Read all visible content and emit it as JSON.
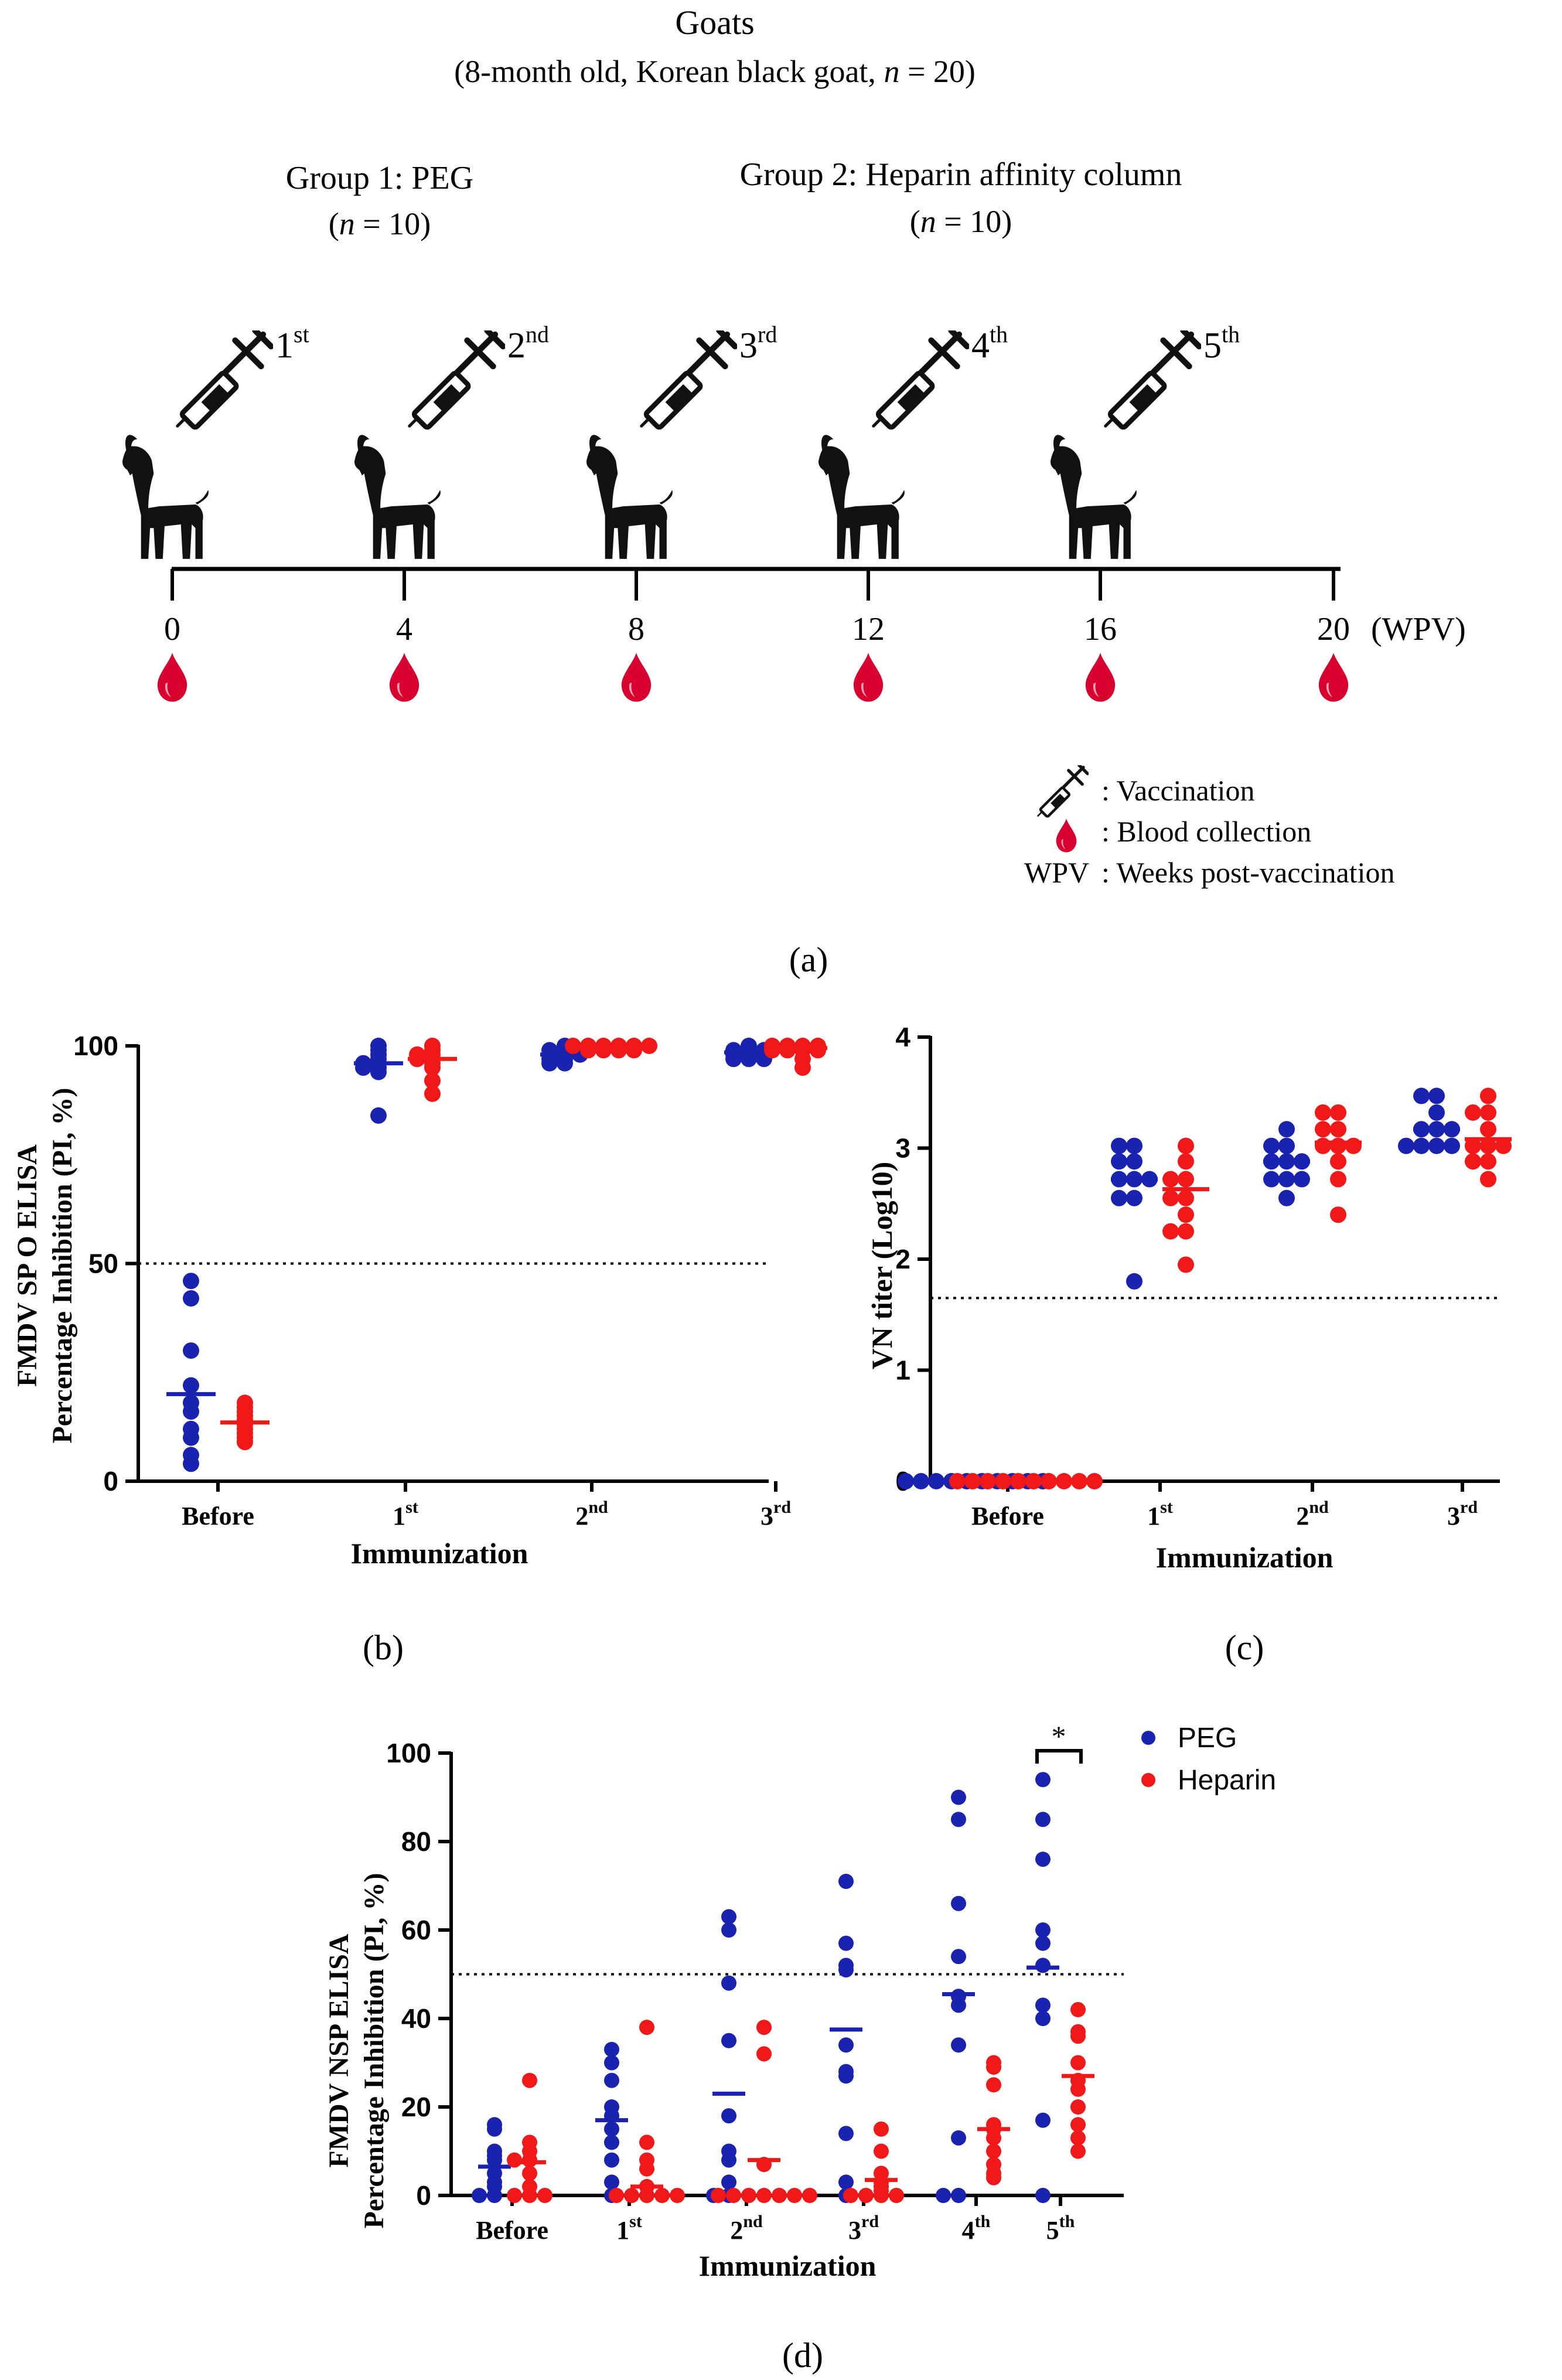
{
  "panel_a": {
    "title": "Goats",
    "subtitle_pre": "(8-month old, Korean black goat, ",
    "subtitle_n": "n",
    "subtitle_post": " = 20)",
    "group1_title": "Group 1:  PEG",
    "group1_n_pre": "(",
    "group1_n": "n",
    "group1_n_post": " = 10)",
    "group2_title": "Group 2: Heparin affinity column",
    "group2_n_pre": "(",
    "group2_n": "n",
    "group2_n_post": " = 10)",
    "doses": [
      {
        "num": "1",
        "sup": "st"
      },
      {
        "num": "2",
        "sup": "nd"
      },
      {
        "num": "3",
        "sup": "rd"
      },
      {
        "num": "4",
        "sup": "th"
      },
      {
        "num": "5",
        "sup": "th"
      }
    ],
    "timeline_ticks": [
      "0",
      "4",
      "8",
      "12",
      "16",
      "20"
    ],
    "timeline_unit": "(WPV)",
    "legend": {
      "vaccination": ": Vaccination",
      "blood": ": Blood collection",
      "wpv_key": "WPV",
      "wpv": ": Weeks post-vaccination"
    },
    "label": "(a)",
    "colors": {
      "goat": "#111111",
      "drop": "#d8002e",
      "line": "#000000"
    }
  },
  "panel_b": {
    "label": "(b)",
    "chart_data": {
      "type": "scatter",
      "ylabel_line1": "FMDV SP O ELISA",
      "ylabel_line2": "Percentage Inhibition (PI, %)",
      "xlabel": "Immunization",
      "ylim": [
        0,
        100
      ],
      "yticks": [
        "0",
        "50",
        "100"
      ],
      "threshold": 50,
      "categories": [
        {
          "num": "Before",
          "sup": ""
        },
        {
          "num": "1",
          "sup": "st"
        },
        {
          "num": "2",
          "sup": "nd"
        },
        {
          "num": "3",
          "sup": "rd"
        }
      ],
      "series": [
        {
          "color": "#1a22b0",
          "means": [
            20,
            96,
            98,
            98.5
          ],
          "points": [
            [
              46,
              42,
              30,
              22,
              18,
              16,
              12,
              10,
              6,
              4
            ],
            [
              100,
              99,
              98,
              97,
              96,
              96,
              95,
              95,
              94,
              84
            ],
            [
              100,
              99,
              99,
              98,
              98,
              98,
              97,
              97,
              96,
              96
            ],
            [
              100,
              99,
              99,
              99,
              98,
              98,
              98,
              97,
              97,
              97
            ]
          ]
        },
        {
          "color": "#f01818",
          "means": [
            13.5,
            97,
            100,
            99.5
          ],
          "points": [
            [
              18,
              17,
              16,
              15,
              14,
              13,
              12,
              11,
              10,
              9
            ],
            [
              100,
              99,
              98,
              98,
              97,
              97,
              96,
              95,
              92,
              89
            ],
            [
              100,
              100,
              100,
              100,
              100,
              100,
              99,
              99,
              99,
              99
            ],
            [
              100,
              100,
              100,
              100,
              99,
              99,
              99,
              99,
              97,
              95
            ]
          ]
        }
      ]
    }
  },
  "panel_c": {
    "label": "(c)",
    "chart_data": {
      "type": "scatter",
      "ylabel": "VN titer (Log10)",
      "xlabel": "Immunization",
      "ylim": [
        0,
        4
      ],
      "yticks": [
        "0",
        "1",
        "2",
        "3",
        "4"
      ],
      "threshold": 1.65,
      "categories": [
        {
          "num": "Before",
          "sup": ""
        },
        {
          "num": "1",
          "sup": "st"
        },
        {
          "num": "2",
          "sup": "nd"
        },
        {
          "num": "3",
          "sup": "rd"
        }
      ],
      "series": [
        {
          "color": "#1a22b0",
          "means": [
            0,
            2.72,
            2.88,
            3.17
          ],
          "points": [
            [
              0,
              0,
              0,
              0,
              0,
              0,
              0,
              0,
              0,
              0
            ],
            [
              3.02,
              3.02,
              2.88,
              2.88,
              2.72,
              2.72,
              2.72,
              2.55,
              2.55,
              1.8
            ],
            [
              3.17,
              3.02,
              3.02,
              2.88,
              2.88,
              2.88,
              2.72,
              2.72,
              2.72,
              2.55
            ],
            [
              3.47,
              3.47,
              3.32,
              3.17,
              3.17,
              3.17,
              3.02,
              3.02,
              3.02,
              3.02
            ]
          ]
        },
        {
          "color": "#f01818",
          "means": [
            0,
            2.63,
            3.05,
            3.08
          ],
          "points": [
            [
              0,
              0,
              0,
              0,
              0,
              0,
              0,
              0,
              0,
              0
            ],
            [
              3.02,
              2.88,
              2.72,
              2.72,
              2.55,
              2.55,
              2.4,
              2.25,
              2.25,
              1.95
            ],
            [
              3.32,
              3.32,
              3.17,
              3.17,
              3.02,
              3.02,
              3.02,
              2.88,
              2.72,
              2.4
            ],
            [
              3.47,
              3.32,
              3.32,
              3.17,
              3.02,
              3.02,
              3.02,
              2.88,
              2.88,
              2.72
            ]
          ]
        }
      ]
    }
  },
  "panel_d": {
    "label": "(d)",
    "chart_data": {
      "type": "scatter",
      "ylabel_line1": "FMDV NSP ELISA",
      "ylabel_line2": "Percentage Inhibition (PI, %)",
      "xlabel": "Immunization",
      "ylim": [
        0,
        100
      ],
      "yticks": [
        "0",
        "20",
        "40",
        "60",
        "80",
        "100"
      ],
      "threshold": 50,
      "significance": "*",
      "legend_placement": "top-right",
      "categories": [
        {
          "num": "Before",
          "sup": ""
        },
        {
          "num": "1",
          "sup": "st"
        },
        {
          "num": "2",
          "sup": "nd"
        },
        {
          "num": "3",
          "sup": "rd"
        },
        {
          "num": "4",
          "sup": "th"
        },
        {
          "num": "5",
          "sup": "th"
        }
      ],
      "series": [
        {
          "name": "PEG",
          "color": "#1a22b0",
          "means": [
            6.5,
            17,
            23,
            37.5,
            45.5,
            51.5
          ],
          "points": [
            [
              16,
              15,
              10,
              9,
              8,
              5,
              3,
              2,
              0,
              0
            ],
            [
              33,
              30,
              26,
              20,
              18,
              15,
              12,
              8,
              3,
              0
            ],
            [
              63,
              60,
              48,
              35,
              18,
              10,
              8,
              3,
              0,
              0
            ],
            [
              71,
              57,
              52,
              51,
              34,
              28,
              27,
              14,
              3,
              0
            ],
            [
              90,
              85,
              66,
              54,
              45,
              43,
              34,
              13,
              0,
              0
            ],
            [
              94,
              85,
              76,
              60,
              57,
              52,
              43,
              40,
              17,
              0
            ]
          ]
        },
        {
          "name": "Heparin",
          "color": "#f01818",
          "means": [
            7.5,
            2,
            8,
            3.5,
            15,
            27
          ],
          "points": [
            [
              26,
              12,
              10,
              8,
              8,
              5,
              2,
              0,
              0,
              0
            ],
            [
              38,
              12,
              8,
              6,
              2,
              0,
              0,
              0,
              0,
              0
            ],
            [
              38,
              32,
              7,
              0,
              0,
              0,
              0,
              0,
              0,
              0
            ],
            [
              15,
              10,
              5,
              3,
              2,
              1,
              0,
              0,
              0,
              0
            ],
            [
              30,
              29,
              25,
              16,
              15,
              13,
              10,
              7,
              5,
              4
            ],
            [
              42,
              37,
              36,
              30,
              26,
              24,
              20,
              16,
              13,
              10
            ]
          ]
        }
      ]
    }
  }
}
